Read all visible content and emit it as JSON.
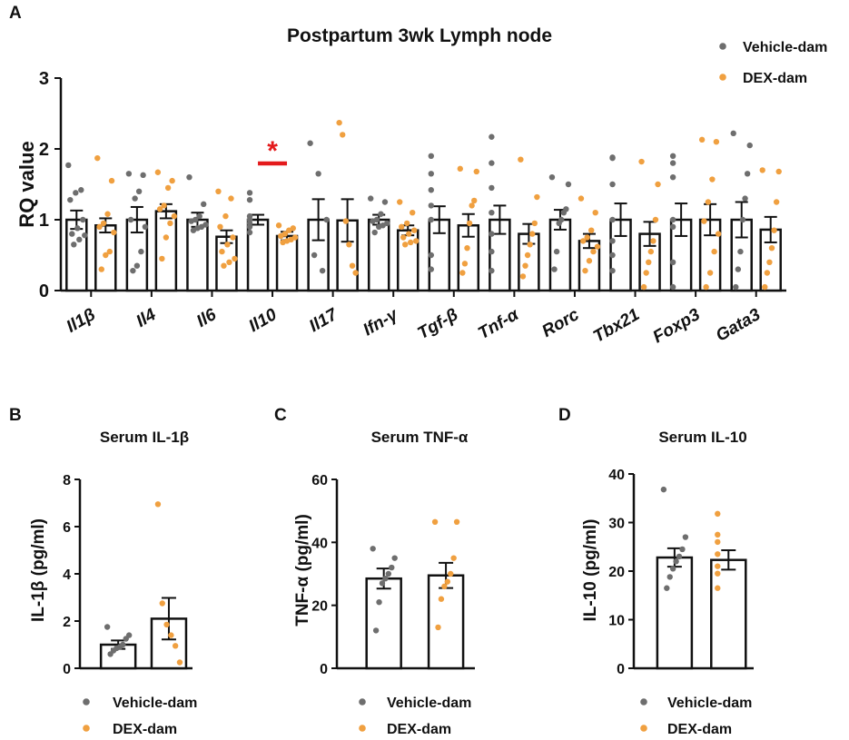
{
  "colors": {
    "vehicle": "#6e6e6e",
    "dex": "#f0a040",
    "significance": "#e41a1c",
    "axis": "#111111"
  },
  "chart_data": [
    {
      "panel": "A",
      "type": "bar",
      "title": "Postpartum 3wk Lymph node",
      "ylabel": "RQ value",
      "xlabel": "",
      "ylim": [
        0,
        3
      ],
      "yticks": [
        "0",
        "1",
        "2",
        "3"
      ],
      "legend": {
        "position": "top-right",
        "entries": [
          "Vehicle-dam",
          "DEX-dam"
        ]
      },
      "significance": {
        "category": "Il10",
        "label": "*"
      },
      "categories": [
        "Il1β",
        "Il4",
        "Il6",
        "Il10",
        "Il17",
        "Ifn-γ",
        "Tgf-β",
        "Tnf-α",
        "Rorc",
        "Tbx21",
        "Foxp3",
        "Gata3"
      ],
      "series": [
        {
          "name": "Vehicle-dam",
          "values": [
            1.0,
            1.0,
            1.0,
            1.0,
            1.0,
            1.0,
            1.0,
            1.0,
            1.0,
            1.0,
            1.0,
            1.0
          ],
          "errors": [
            0.13,
            0.18,
            0.1,
            0.07,
            0.29,
            0.07,
            0.19,
            0.2,
            0.14,
            0.23,
            0.23,
            0.25
          ],
          "points": [
            [
              1.77,
              1.42,
              1.38,
              1.28,
              1.0,
              0.88,
              0.8,
              0.78,
              0.72,
              0.65
            ],
            [
              1.65,
              1.63,
              1.4,
              1.3,
              1.0,
              0.9,
              0.55,
              0.35,
              0.28
            ],
            [
              1.6,
              1.22,
              1.05,
              1.0,
              0.98,
              0.93,
              0.9,
              0.88,
              0.85
            ],
            [
              1.38,
              1.28,
              1.05,
              1.0,
              0.95,
              0.9,
              0.82
            ],
            [
              2.08,
              1.65,
              1.0,
              0.5,
              0.28
            ],
            [
              1.3,
              1.25,
              1.08,
              1.0,
              0.98,
              0.95,
              0.92,
              0.9,
              0.82
            ],
            [
              1.9,
              1.65,
              1.42,
              1.2,
              1.0,
              0.5,
              0.3
            ],
            [
              2.17,
              1.8,
              1.45,
              1.1,
              0.8,
              0.55,
              0.28
            ],
            [
              1.6,
              1.5,
              1.15,
              1.1,
              1.0,
              0.95,
              0.55,
              0.3
            ],
            [
              1.88,
              1.87,
              1.5,
              1.0,
              0.7,
              0.5,
              0.28
            ],
            [
              1.9,
              1.8,
              1.6,
              1.0,
              0.9,
              0.4,
              0.05
            ],
            [
              2.22,
              2.05,
              1.65,
              1.3,
              1.0,
              0.55,
              0.3,
              0.05
            ]
          ]
        },
        {
          "name": "DEX-dam",
          "values": [
            0.92,
            1.12,
            0.76,
            0.77,
            0.99,
            0.85,
            0.92,
            0.8,
            0.7,
            0.8,
            1.0,
            0.86
          ],
          "errors": [
            0.1,
            0.1,
            0.09,
            0.06,
            0.3,
            0.07,
            0.16,
            0.14,
            0.1,
            0.17,
            0.22,
            0.18
          ],
          "points": [
            [
              1.87,
              1.55,
              1.08,
              0.95,
              0.9,
              0.82,
              0.55,
              0.5,
              0.3
            ],
            [
              1.67,
              1.55,
              1.45,
              1.2,
              1.15,
              1.05,
              0.95,
              0.75,
              0.45
            ],
            [
              1.4,
              1.3,
              1.05,
              0.9,
              0.75,
              0.65,
              0.55,
              0.45,
              0.4,
              0.35
            ],
            [
              0.92,
              0.88,
              0.85,
              0.8,
              0.77,
              0.75,
              0.72,
              0.7,
              0.68
            ],
            [
              2.37,
              2.2,
              0.98,
              0.65,
              0.35,
              0.25
            ],
            [
              1.25,
              1.1,
              0.95,
              0.9,
              0.85,
              0.8,
              0.75,
              0.7,
              0.68,
              0.65
            ],
            [
              1.72,
              1.68,
              1.27,
              1.2,
              0.95,
              0.6,
              0.38,
              0.25
            ],
            [
              1.85,
              1.32,
              0.95,
              0.8,
              0.65,
              0.5,
              0.35,
              0.2
            ],
            [
              1.3,
              1.1,
              0.85,
              0.75,
              0.7,
              0.62,
              0.55,
              0.42,
              0.28
            ],
            [
              1.82,
              1.5,
              1.0,
              0.7,
              0.55,
              0.4,
              0.25,
              0.05
            ],
            [
              2.13,
              2.1,
              1.57,
              1.25,
              0.98,
              0.8,
              0.55,
              0.25,
              0.05
            ],
            [
              1.7,
              1.68,
              1.25,
              0.85,
              0.6,
              0.4,
              0.25,
              0.05
            ]
          ]
        }
      ]
    },
    {
      "panel": "B",
      "type": "bar",
      "title": "Serum IL-1β",
      "ylabel": "IL-1β (pg/ml)",
      "xlabel": "",
      "ylim": [
        0,
        8
      ],
      "yticks": [
        "0",
        "2",
        "4",
        "6",
        "8"
      ],
      "legend": {
        "position": "bottom",
        "entries": [
          "Vehicle-dam",
          "DEX-dam"
        ]
      },
      "categories": [
        "Vehicle-dam",
        "DEX-dam"
      ],
      "values": [
        1.0,
        2.1
      ],
      "errors": [
        0.18,
        0.88
      ],
      "points": [
        [
          1.75,
          1.4,
          1.25,
          1.0,
          0.9,
          0.85,
          0.75,
          0.6
        ],
        [
          6.95,
          2.75,
          1.85,
          1.4,
          0.95,
          0.25
        ]
      ]
    },
    {
      "panel": "C",
      "type": "bar",
      "title": "Serum TNF-α",
      "ylabel": "TNF-α (pg/ml)",
      "xlabel": "",
      "ylim": [
        0,
        60
      ],
      "yticks": [
        "0",
        "20",
        "40",
        "60"
      ],
      "legend": {
        "position": "bottom",
        "entries": [
          "Vehicle-dam",
          "DEX-dam"
        ]
      },
      "categories": [
        "Vehicle-dam",
        "DEX-dam"
      ],
      "values": [
        28.5,
        29.5
      ],
      "errors": [
        3.2,
        4.0
      ],
      "points": [
        [
          38,
          35,
          32,
          30,
          28.5,
          27,
          21,
          12
        ],
        [
          46.5,
          46.5,
          35,
          30,
          27.5,
          26,
          22,
          13
        ]
      ]
    },
    {
      "panel": "D",
      "type": "bar",
      "title": "Serum IL-10",
      "ylabel": "IL-10 (pg/ml)",
      "xlabel": "",
      "ylim": [
        0,
        40
      ],
      "yticks": [
        "0",
        "10",
        "20",
        "30",
        "40"
      ],
      "legend": {
        "position": "bottom",
        "entries": [
          "Vehicle-dam",
          "DEX-dam"
        ]
      },
      "categories": [
        "Vehicle-dam",
        "DEX-dam"
      ],
      "values": [
        22.8,
        22.3
      ],
      "errors": [
        1.9,
        2.0
      ],
      "points": [
        [
          36.8,
          27,
          24.5,
          23,
          22,
          20.5,
          18.8,
          16.5
        ],
        [
          31.8,
          27.5,
          26,
          23.5,
          21,
          19.5,
          16.5
        ]
      ]
    }
  ]
}
